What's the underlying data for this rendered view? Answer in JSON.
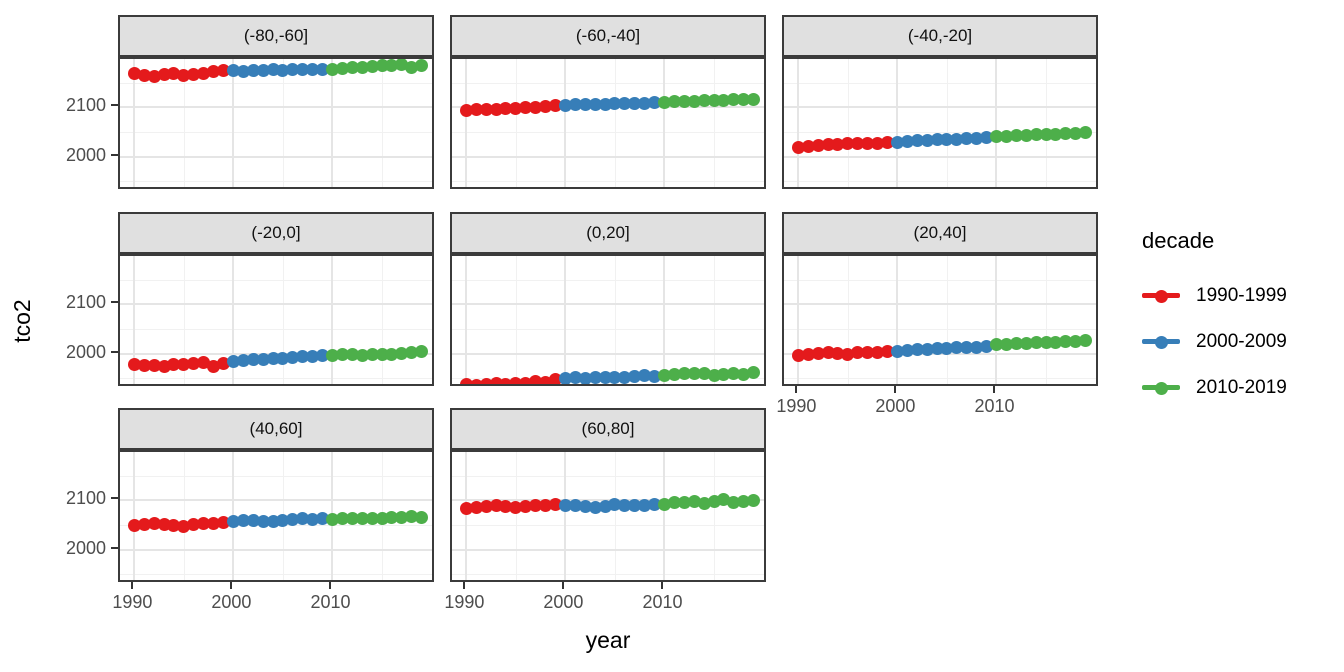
{
  "chart_data": {
    "type": "scatter",
    "title": "",
    "xlabel": "year",
    "ylabel": "tco2",
    "grid": true,
    "legend_position": "right",
    "x_domain": [
      1988.55,
      2020.45
    ],
    "y_domain": [
      1930,
      2198
    ],
    "x_ticks": [
      1990,
      2000,
      2010
    ],
    "x_minor_ticks": [
      1995,
      2005,
      2015
    ],
    "y_ticks": [
      2100,
      2000
    ],
    "y_minor_ticks": [
      1950,
      2050,
      2150
    ],
    "x": [
      1990,
      1991,
      1992,
      1993,
      1994,
      1995,
      1996,
      1997,
      1998,
      1999,
      2000,
      2001,
      2002,
      2003,
      2004,
      2005,
      2006,
      2007,
      2008,
      2009,
      2010,
      2011,
      2012,
      2013,
      2014,
      2015,
      2016,
      2017,
      2018,
      2019
    ],
    "legend": {
      "title": "decade",
      "entries": [
        {
          "label": "1990-1999",
          "color": "#E41A1C"
        },
        {
          "label": "2000-2009",
          "color": "#377EB8"
        },
        {
          "label": "2010-2019",
          "color": "#4DAF4A"
        }
      ]
    },
    "facets": [
      {
        "label": "(-80,-60]",
        "values": [
          2168,
          2165,
          2162,
          2166,
          2168,
          2165,
          2167,
          2169,
          2172,
          2175,
          2174,
          2173,
          2175,
          2174,
          2176,
          2175,
          2176,
          2177,
          2176,
          2177,
          2177,
          2179,
          2181,
          2180,
          2183,
          2185,
          2184,
          2186,
          2181,
          2184
        ]
      },
      {
        "label": "(-60,-40]",
        "values": [
          2094,
          2095,
          2096,
          2096,
          2097,
          2098,
          2099,
          2100,
          2101,
          2103,
          2104,
          2105,
          2105,
          2106,
          2106,
          2107,
          2107,
          2108,
          2108,
          2109,
          2110,
          2111,
          2112,
          2112,
          2113,
          2114,
          2114,
          2115,
          2116,
          2116
        ]
      },
      {
        "label": "(-40,-20]",
        "values": [
          2018,
          2021,
          2023,
          2024,
          2025,
          2026,
          2026,
          2027,
          2027,
          2028,
          2029,
          2030,
          2032,
          2033,
          2034,
          2035,
          2035,
          2036,
          2037,
          2038,
          2040,
          2041,
          2042,
          2043,
          2044,
          2044,
          2045,
          2046,
          2047,
          2048
        ]
      },
      {
        "label": "(-20,0]",
        "values": [
          1978,
          1975,
          1976,
          1974,
          1977,
          1978,
          1980,
          1982,
          1973,
          1980,
          1984,
          1986,
          1987,
          1988,
          1989,
          1990,
          1992,
          1993,
          1994,
          1995,
          1997,
          1999,
          1998,
          1997,
          1998,
          1999,
          1998,
          2000,
          2003,
          2004
        ]
      },
      {
        "label": "(0,20]",
        "values": [
          1938,
          1936,
          1937,
          1939,
          1937,
          1940,
          1939,
          1943,
          1942,
          1947,
          1950,
          1951,
          1950,
          1951,
          1951,
          1952,
          1952,
          1953,
          1955,
          1953,
          1956,
          1958,
          1959,
          1960,
          1959,
          1955,
          1957,
          1960,
          1958,
          1961
        ]
      },
      {
        "label": "(20,40]",
        "values": [
          1996,
          1999,
          2001,
          2002,
          2001,
          1999,
          2003,
          2003,
          2002,
          2004,
          2005,
          2006,
          2008,
          2009,
          2010,
          2011,
          2012,
          2013,
          2012,
          2014,
          2018,
          2019,
          2020,
          2021,
          2022,
          2022,
          2023,
          2024,
          2025,
          2027
        ]
      },
      {
        "label": "(40,60]",
        "values": [
          2048,
          2050,
          2052,
          2050,
          2048,
          2046,
          2051,
          2053,
          2052,
          2055,
          2056,
          2058,
          2058,
          2057,
          2056,
          2058,
          2060,
          2063,
          2061,
          2063,
          2061,
          2062,
          2063,
          2062,
          2064,
          2064,
          2065,
          2066,
          2067,
          2066
        ]
      },
      {
        "label": "(60,80]",
        "values": [
          2083,
          2085,
          2088,
          2090,
          2087,
          2086,
          2088,
          2089,
          2090,
          2092,
          2090,
          2089,
          2088,
          2086,
          2088,
          2091,
          2090,
          2089,
          2090,
          2092,
          2092,
          2095,
          2096,
          2097,
          2094,
          2098,
          2102,
          2095,
          2097,
          2100
        ]
      }
    ]
  },
  "colors": {
    "strip_background": "#E0E0E0",
    "panel_border": "#3B3B3B",
    "grid_major": "#E5E5E5",
    "grid_minor": "#F1F1F1",
    "tick_label": "#4D4D4D",
    "axis_title": "#000000",
    "background": "#FFFFFF"
  }
}
